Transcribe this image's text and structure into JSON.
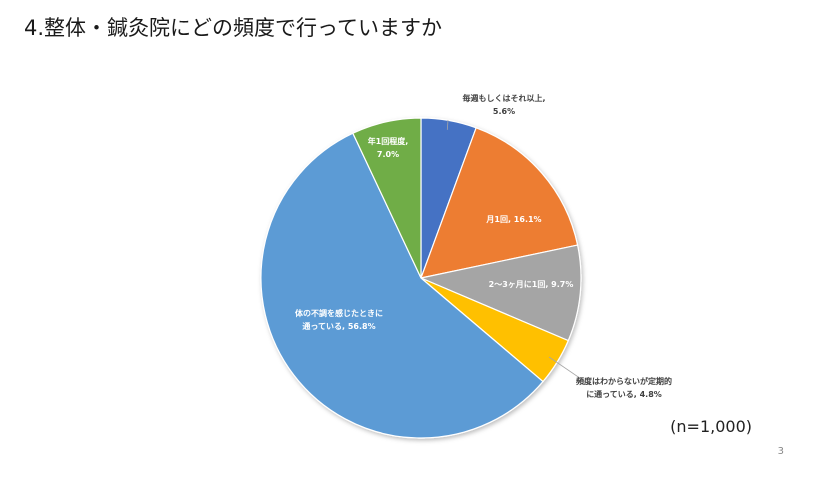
{
  "slide": {
    "title": "4.整体・鍼灸院にどの頻度で行っていますか",
    "sample_size": "(n=1,000)",
    "page_number": "3"
  },
  "chart_data": {
    "type": "pie",
    "title": "4.整体・鍼灸院にどの頻度で行っていますか",
    "start_angle_deg": 0,
    "direction": "clockwise",
    "slices": [
      {
        "label": "毎週もしくはそれ以上",
        "value": 5.6,
        "display": "5.6%",
        "color": "#4472C4",
        "label_lines": [
          "毎週もしくはそれ以上,",
          "5.6%"
        ],
        "label_position": "outside"
      },
      {
        "label": "月1回",
        "value": 16.1,
        "display": "16.1%",
        "color": "#ED7D31",
        "label_lines": [
          "月1回, 16.1%"
        ],
        "label_position": "inside"
      },
      {
        "label": "2〜3ヶ月に1回",
        "value": 9.7,
        "display": "9.7%",
        "color": "#A5A5A5",
        "label_lines": [
          "2〜3ヶ月に1回, 9.7%"
        ],
        "label_position": "inside"
      },
      {
        "label": "頻度はわからないが定期的に通っている",
        "value": 4.8,
        "display": "4.8%",
        "color": "#FFC000",
        "label_lines": [
          "頻度はわからないが定期的",
          "に通っている, 4.8%"
        ],
        "label_position": "outside"
      },
      {
        "label": "体の不調を感じたときに通っている",
        "value": 56.8,
        "display": "56.8%",
        "color": "#5B9BD5",
        "label_lines": [
          "体の不調を感じたときに",
          "通っている, 56.8%"
        ],
        "label_position": "inside"
      },
      {
        "label": "年1回程度",
        "value": 7.0,
        "display": "7.0%",
        "color": "#70AD47",
        "label_lines": [
          "年1回程度,",
          "7.0%"
        ],
        "label_position": "inside"
      }
    ]
  }
}
